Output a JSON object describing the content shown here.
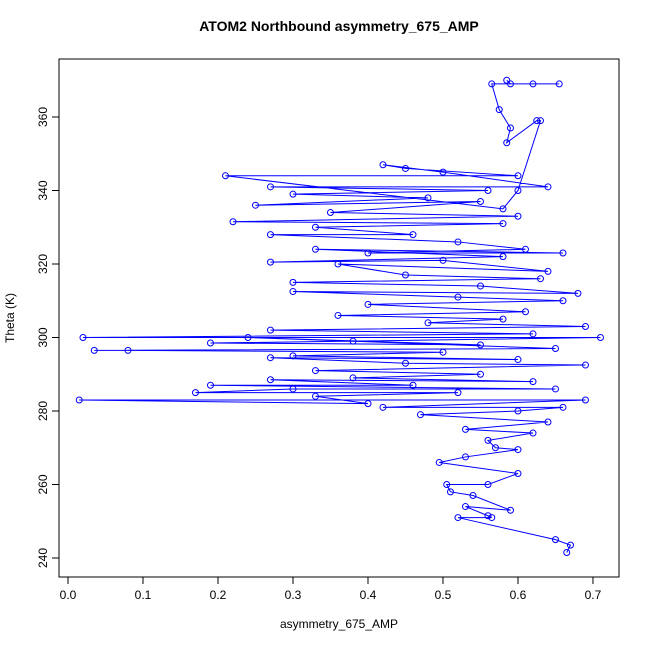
{
  "chart_data": {
    "type": "line",
    "title": "ATOM2 Northbound asymmetry_675_AMP",
    "x_label": "asymmetry_675_AMP",
    "y_label": "Theta (K)",
    "xlim": [
      -0.012,
      0.7347
    ],
    "ylim": [
      234.83,
      375.78
    ],
    "xticks": [
      {
        "value": 0,
        "label": "0.0"
      },
      0.1,
      0.2,
      0.3,
      0.4,
      0.5,
      0.6,
      0.7
    ],
    "yticks": [
      240,
      260,
      280,
      300,
      320,
      340,
      360
    ],
    "grid": false,
    "markers": true,
    "series": [
      {
        "color": "#0000ff",
        "x": [
          0.585,
          0.59,
          0.62,
          0.655,
          0.565,
          0.575,
          0.59,
          0.585,
          0.625,
          0.63,
          0.6,
          0.58,
          0.21,
          0.6,
          0.45,
          0.42,
          0.5,
          0.64,
          0.27,
          0.56,
          0.3,
          0.48,
          0.25,
          0.55,
          0.35,
          0.6,
          0.22,
          0.58,
          0.33,
          0.46,
          0.27,
          0.52,
          0.61,
          0.4,
          0.66,
          0.33,
          0.58,
          0.27,
          0.5,
          0.64,
          0.36,
          0.45,
          0.63,
          0.3,
          0.55,
          0.68,
          0.3,
          0.52,
          0.66,
          0.4,
          0.61,
          0.36,
          0.58,
          0.48,
          0.69,
          0.27,
          0.62,
          0.02,
          0.71,
          0.38,
          0.19,
          0.55,
          0.24,
          0.65,
          0.035,
          0.08,
          0.5,
          0.3,
          0.6,
          0.27,
          0.45,
          0.69,
          0.33,
          0.55,
          0.38,
          0.62,
          0.27,
          0.46,
          0.19,
          0.65,
          0.3,
          0.17,
          0.52,
          0.33,
          0.4,
          0.015,
          0.69,
          0.42,
          0.66,
          0.6,
          0.47,
          0.64,
          0.53,
          0.62,
          0.56,
          0.57,
          0.6,
          0.53,
          0.495,
          0.6,
          0.56,
          0.505,
          0.51,
          0.54,
          0.59,
          0.53,
          0.56,
          0.565,
          0.52,
          0.65,
          0.67,
          0.665
        ],
        "values": [
          370,
          369,
          369,
          369,
          369,
          362,
          357,
          353,
          359,
          359,
          340,
          335,
          344,
          344,
          346,
          347,
          345,
          341,
          341,
          340,
          339,
          338,
          336,
          337,
          334,
          333,
          331.5,
          331,
          330,
          328,
          328,
          326,
          324,
          323,
          323,
          324,
          322,
          320.5,
          321,
          318,
          320,
          317,
          316,
          315,
          314,
          312,
          312.5,
          311,
          310,
          309,
          307,
          306,
          305,
          304,
          303,
          302,
          301,
          300,
          300,
          299,
          298.5,
          298,
          300,
          297,
          296.5,
          296.5,
          296,
          295,
          294,
          294.5,
          293,
          292.5,
          291,
          290,
          289,
          288,
          288.5,
          287,
          287,
          286,
          286,
          285,
          285,
          284,
          282,
          283,
          283,
          281,
          281,
          280,
          279,
          277,
          275,
          274,
          272,
          270,
          269.5,
          267.5,
          266,
          263,
          260,
          260,
          258,
          257,
          253,
          254,
          251.5,
          251,
          251,
          245,
          243.5,
          241.5
        ]
      }
    ]
  }
}
